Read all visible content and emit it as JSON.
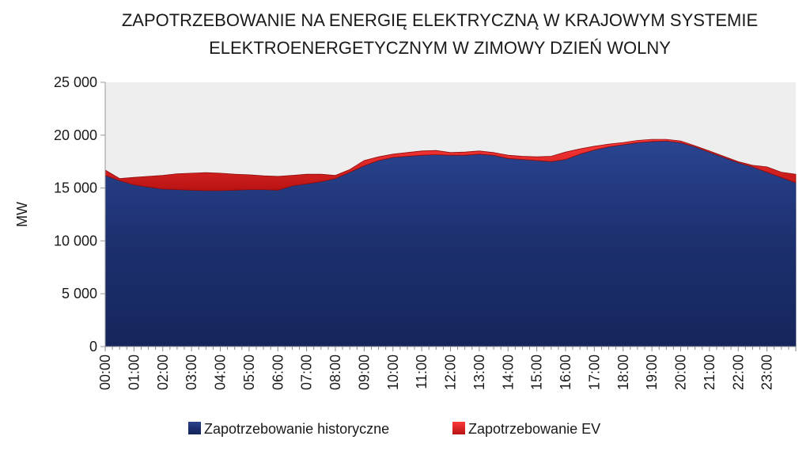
{
  "chart_data": {
    "type": "area",
    "stacked": true,
    "title_lines": [
      "ZAPOTRZEBOWANIE NA ENERGIĘ ELEKTRYCZNĄ W KRAJOWYM SYSTEMIE",
      "ELEKTROENERGETYCZNYM W ZIMOWY DZIEŃ WOLNY"
    ],
    "ylabel": "MW",
    "ylim": [
      0,
      25000
    ],
    "yticks": [
      0,
      5000,
      10000,
      15000,
      20000,
      25000
    ],
    "ytick_labels": [
      "0",
      "5 000",
      "10 000",
      "15 000",
      "20 000",
      "25 000"
    ],
    "xlim": [
      0,
      24
    ],
    "xticks": [
      0,
      1,
      2,
      3,
      4,
      5,
      6,
      7,
      8,
      9,
      10,
      11,
      12,
      13,
      14,
      15,
      16,
      17,
      18,
      19,
      20,
      21,
      22,
      23
    ],
    "xtick_labels": [
      "00:00",
      "01:00",
      "02:00",
      "03:00",
      "04:00",
      "05:00",
      "06:00",
      "07:00",
      "08:00",
      "09:00",
      "10:00",
      "11:00",
      "12:00",
      "13:00",
      "14:00",
      "15:00",
      "16:00",
      "17:00",
      "18:00",
      "19:00",
      "20:00",
      "21:00",
      "22:00",
      "23:00"
    ],
    "plot_background": "#eeeeee",
    "legend_position": "bottom",
    "x": [
      0,
      0.5,
      1,
      1.5,
      2,
      2.5,
      3,
      3.5,
      4,
      4.5,
      5,
      5.5,
      6,
      6.5,
      7,
      7.5,
      8,
      8.5,
      9,
      9.5,
      10,
      10.5,
      11,
      11.5,
      12,
      12.5,
      13,
      13.5,
      14,
      14.5,
      15,
      15.5,
      16,
      16.5,
      17,
      17.5,
      18,
      18.5,
      19,
      19.5,
      20,
      20.5,
      21,
      21.5,
      22,
      22.5,
      23,
      23.5,
      24
    ],
    "series": [
      {
        "name": "Zapotrzebowanie historyczne",
        "color": "#1c2f6e",
        "values": [
          16200,
          15700,
          15300,
          15100,
          14900,
          14850,
          14800,
          14750,
          14750,
          14800,
          14850,
          14850,
          14800,
          15200,
          15400,
          15600,
          15900,
          16500,
          17100,
          17600,
          17900,
          18000,
          18100,
          18150,
          18100,
          18100,
          18200,
          18100,
          17800,
          17700,
          17600,
          17500,
          17700,
          18200,
          18600,
          18900,
          19100,
          19300,
          19400,
          19450,
          19300,
          18900,
          18400,
          17900,
          17400,
          17000,
          16500,
          16000,
          15500
        ]
      },
      {
        "name": "Zapotrzebowanie EV",
        "color": "#d41e1e",
        "values": [
          500,
          200,
          700,
          1000,
          1300,
          1500,
          1600,
          1700,
          1650,
          1500,
          1400,
          1300,
          1300,
          1000,
          900,
          700,
          300,
          250,
          500,
          350,
          300,
          350,
          400,
          400,
          250,
          300,
          300,
          250,
          300,
          300,
          350,
          500,
          700,
          500,
          350,
          250,
          200,
          200,
          200,
          150,
          150,
          100,
          100,
          100,
          100,
          150,
          500,
          500,
          800
        ]
      }
    ]
  }
}
